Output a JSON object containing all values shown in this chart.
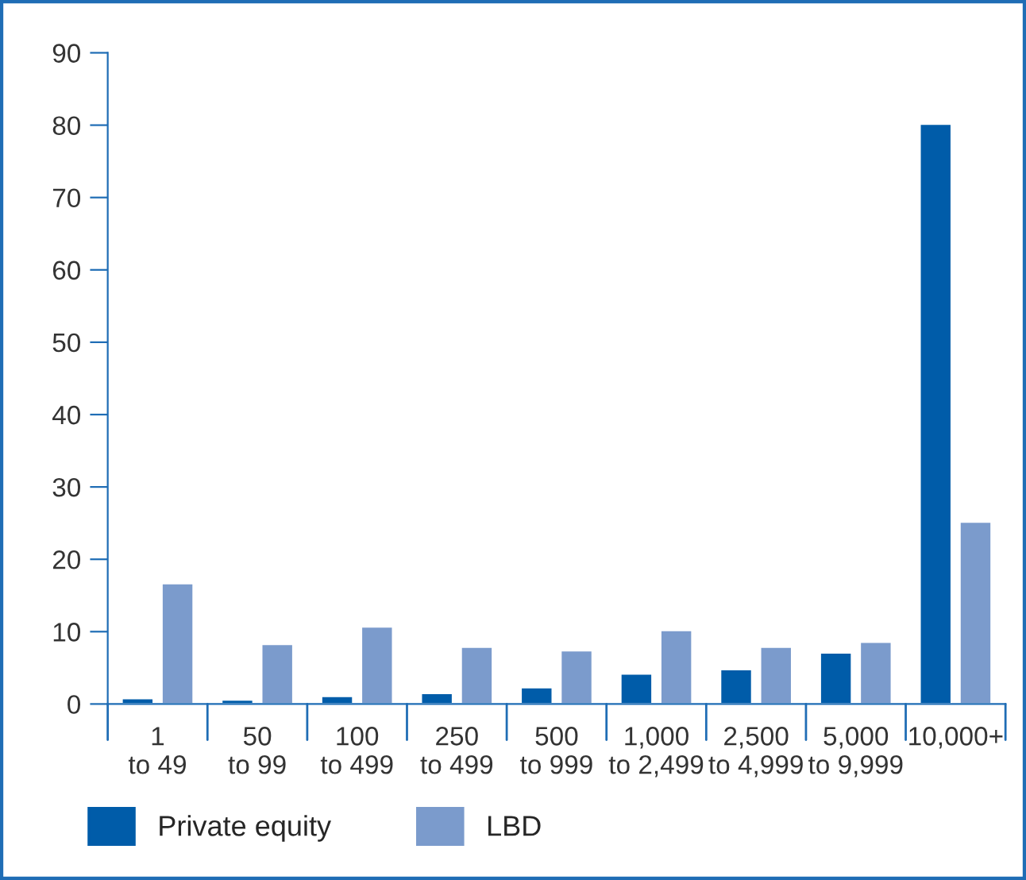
{
  "chart_data": {
    "type": "bar",
    "categories": [
      "1\nto 49",
      "50\nto 99",
      "100\nto 499",
      "250\nto 499",
      "500\nto 999",
      "1,000\nto 2,499",
      "2,500\nto 4,999",
      "5,000\nto 9,999",
      "10,000+"
    ],
    "series": [
      {
        "name": "Private equity",
        "color": "#005ca9",
        "values": [
          0.8,
          0.6,
          1.1,
          1.5,
          2.3,
          4.2,
          4.8,
          7.1,
          80.2
        ]
      },
      {
        "name": "LBD",
        "color": "#7b9bcc",
        "values": [
          16.7,
          8.3,
          10.7,
          7.9,
          7.4,
          10.2,
          7.9,
          8.6,
          25.2
        ]
      }
    ],
    "ylim": [
      0,
      90
    ],
    "yticks": [
      0,
      10,
      20,
      30,
      40,
      50,
      60,
      70,
      80,
      90
    ],
    "grid": false,
    "legend": "bottom"
  }
}
